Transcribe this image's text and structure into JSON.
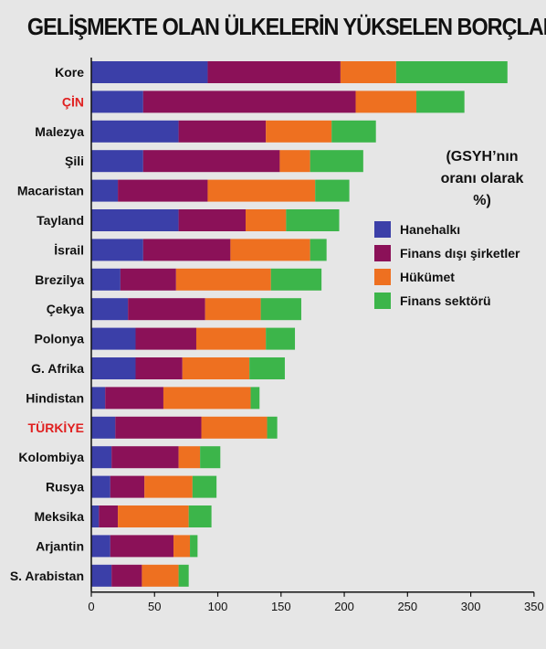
{
  "chart_data": {
    "type": "bar",
    "orientation": "horizontal",
    "stacked": true,
    "title": "GELİŞMEKTE OLAN ÜLKELERİN YÜKSELEN BORÇLARI",
    "note": "(GSYH’nın oranı olarak %)",
    "categories": [
      "Kore",
      "ÇİN",
      "Malezya",
      "Şili",
      "Macaristan",
      "Tayland",
      "İsrail",
      "Brezilya",
      "Çekya",
      "Polonya",
      "G. Afrika",
      "Hindistan",
      "TÜRKİYE",
      "Kolombiya",
      "Rusya",
      "Meksika",
      "Arjantin",
      "S. Arabistan"
    ],
    "highlighted_categories": [
      "ÇİN",
      "TÜRKİYE"
    ],
    "highlight_color": "#e02020",
    "series": [
      {
        "name": "Hanehalkı",
        "color": "#3b3fa8",
        "values": [
          92,
          41,
          69,
          41,
          21,
          69,
          41,
          23,
          29,
          35,
          35,
          11,
          19,
          16,
          15,
          6,
          15,
          16
        ]
      },
      {
        "name": "Finans dışı şirketler",
        "color": "#8b1158",
        "values": [
          105,
          168,
          69,
          108,
          71,
          53,
          69,
          44,
          61,
          48,
          37,
          46,
          68,
          53,
          27,
          15,
          50,
          24
        ]
      },
      {
        "name": "Hükümet",
        "color": "#ee7020",
        "values": [
          44,
          48,
          52,
          24,
          85,
          32,
          63,
          75,
          44,
          55,
          53,
          69,
          52,
          17,
          38,
          56,
          13,
          29
        ]
      },
      {
        "name": "Finans sektörü",
        "color": "#3cb54a",
        "values": [
          88,
          38,
          35,
          42,
          27,
          42,
          13,
          40,
          32,
          23,
          28,
          7,
          8,
          16,
          19,
          18,
          6,
          8
        ]
      }
    ],
    "xlim": [
      0,
      350
    ],
    "xticks": [
      "0",
      "50",
      "100",
      "150",
      "200",
      "250",
      "300",
      "350"
    ],
    "legend_position": "right-middle"
  }
}
